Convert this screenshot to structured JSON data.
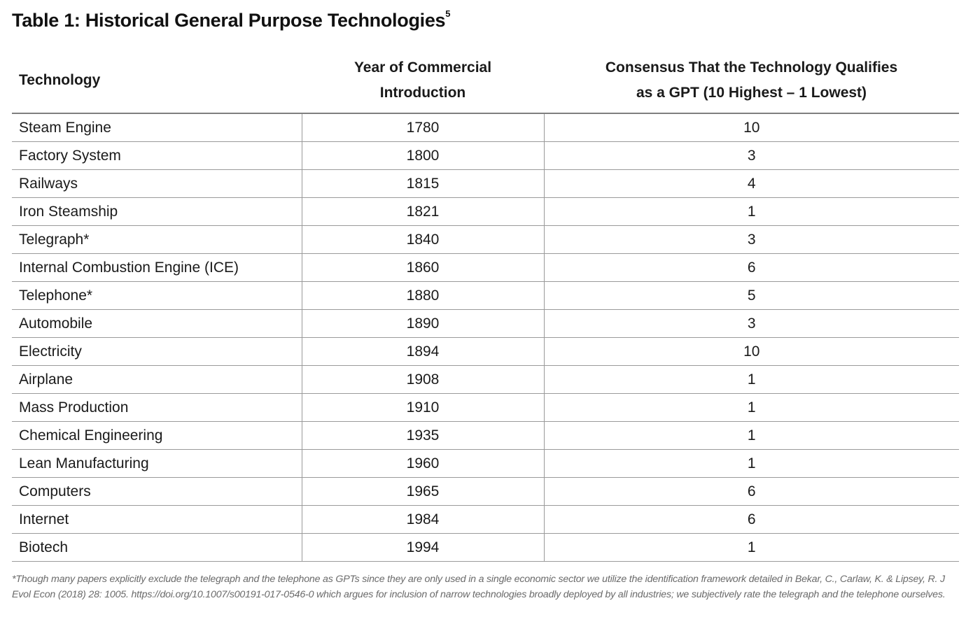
{
  "title": "Table 1: Historical General Purpose Technologies",
  "title_sup": "5",
  "headers": {
    "technology": "Technology",
    "year_line1": "Year of Commercial",
    "year_line2": "Introduction",
    "consensus_line1": "Consensus That the Technology Qualifies",
    "consensus_line2": "as a GPT (10 Highest – 1 Lowest)"
  },
  "rows": [
    {
      "technology": "Steam Engine",
      "year": "1780",
      "score": "10"
    },
    {
      "technology": "Factory System",
      "year": "1800",
      "score": "3"
    },
    {
      "technology": "Railways",
      "year": "1815",
      "score": "4"
    },
    {
      "technology": "Iron Steamship",
      "year": "1821",
      "score": "1"
    },
    {
      "technology": "Telegraph*",
      "year": "1840",
      "score": "3"
    },
    {
      "technology": "Internal Combustion Engine (ICE)",
      "year": "1860",
      "score": "6"
    },
    {
      "technology": "Telephone*",
      "year": "1880",
      "score": "5"
    },
    {
      "technology": "Automobile",
      "year": "1890",
      "score": "3"
    },
    {
      "technology": "Electricity",
      "year": "1894",
      "score": "10"
    },
    {
      "technology": "Airplane",
      "year": "1908",
      "score": "1"
    },
    {
      "technology": "Mass Production",
      "year": "1910",
      "score": "1"
    },
    {
      "technology": "Chemical Engineering",
      "year": "1935",
      "score": "1"
    },
    {
      "technology": "Lean Manufacturing",
      "year": "1960",
      "score": "1"
    },
    {
      "technology": "Computers",
      "year": "1965",
      "score": "6"
    },
    {
      "technology": "Internet",
      "year": "1984",
      "score": "6"
    },
    {
      "technology": "Biotech",
      "year": "1994",
      "score": "1"
    }
  ],
  "footnote": "*Though many papers explicitly exclude the telegraph and the telephone as GPTs since they are only used in a single economic sector we utilize the identification framework detailed in Bekar, C., Carlaw, K. & Lipsey, R. J Evol Econ (2018) 28: 1005. https://doi.org/10.1007/s00191-017-0546-0 which argues for inclusion of narrow technologies broadly deployed by all industries; we subjectively rate the telegraph and the telephone ourselves."
}
